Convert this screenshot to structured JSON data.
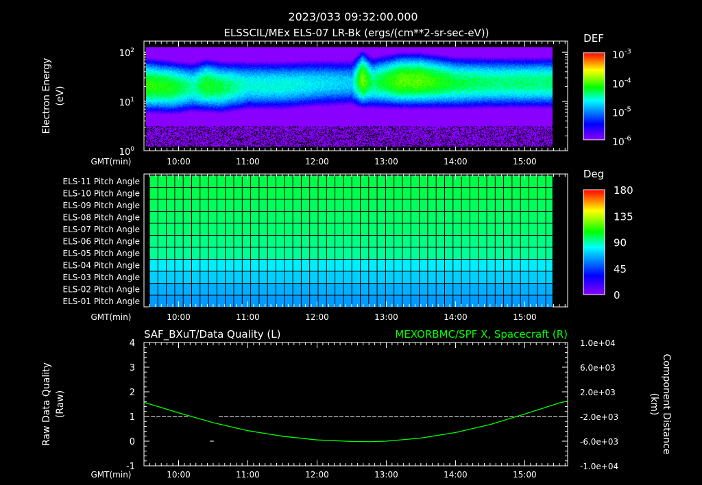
{
  "header": {
    "timestamp": "2023/033 09:32:00.000",
    "title": "ELSSCIL/MEx ELS-07 LR-Bk  (ergs/(cm**2-sr-sec-eV))"
  },
  "chart_data": [
    {
      "type": "heatmap",
      "name": "electron-spectrogram",
      "ylabel": "Electron Energy",
      "ylabel2": "(eV)",
      "yscale": "log",
      "ylim": [
        1,
        150
      ],
      "yticks": [
        {
          "v": 1,
          "base": "10",
          "exp": "0"
        },
        {
          "v": 10,
          "base": "10",
          "exp": "1"
        },
        {
          "v": 100,
          "base": "10",
          "exp": "2"
        }
      ],
      "xlabel": "GMT(min)",
      "xlim_hours": [
        9.5,
        15.62
      ],
      "data_end_hours": 15.4,
      "xticks": [
        "10:00",
        "11:00",
        "12:00",
        "13:00",
        "14:00",
        "15:00"
      ],
      "colorbar": {
        "label": "DEF",
        "scale": "log",
        "range": [
          1e-06,
          0.001
        ],
        "ticks": [
          {
            "base": "10",
            "exp": "-3"
          },
          {
            "base": "10",
            "exp": "-4"
          },
          {
            "base": "10",
            "exp": "-5"
          },
          {
            "base": "10",
            "exp": "-6"
          }
        ]
      },
      "band_profile": {
        "hours": [
          9.5,
          9.9,
          10.2,
          10.4,
          10.6,
          11.0,
          11.5,
          12.0,
          12.5,
          12.65,
          12.8,
          13.2,
          13.5,
          14.0,
          14.5,
          15.0,
          15.4
        ],
        "peak_log10": [
          -4.1,
          -4.2,
          -4.5,
          -4.2,
          -4.3,
          -4.6,
          -4.6,
          -4.7,
          -4.8,
          -3.9,
          -4.4,
          -4.0,
          -4.0,
          -4.3,
          -4.4,
          -4.4,
          -4.4
        ],
        "peak_energy_eV": [
          22,
          20,
          20,
          22,
          20,
          22,
          22,
          24,
          25,
          30,
          25,
          28,
          28,
          25,
          25,
          25,
          25
        ]
      }
    },
    {
      "type": "heatmap",
      "name": "pitch-angle",
      "rows": [
        "ELS-11 Pitch Angle",
        "ELS-10 Pitch Angle",
        "ELS-09 Pitch Angle",
        "ELS-08 Pitch Angle",
        "ELS-07 Pitch Angle",
        "ELS-06 Pitch Angle",
        "ELS-05 Pitch Angle",
        "ELS-04 Pitch Angle",
        "ELS-03 Pitch Angle",
        "ELS-02 Pitch Angle",
        "ELS-01 Pitch Angle"
      ],
      "values_deg": [
        100,
        100,
        98,
        97,
        96,
        94,
        92,
        78,
        72,
        66,
        62
      ],
      "xlabel": "GMT(min)",
      "xticks": [
        "10:00",
        "11:00",
        "12:00",
        "13:00",
        "14:00",
        "15:00"
      ],
      "colorbar": {
        "label": "Deg",
        "range": [
          0,
          180
        ],
        "ticks": [
          "180",
          "135",
          "90",
          "45",
          "0"
        ]
      }
    },
    {
      "type": "line",
      "name": "data-quality-and-position",
      "title_left": "SAF_BXuT/Data Quality (L)",
      "title_right": "MEXORBMC/SPF X, Spacecraft (R)",
      "ylabel_left": "Raw Data Quality",
      "ylabel_left2": "(Raw)",
      "ylabel_right": "Component Distance",
      "ylabel_right2": "(km)",
      "xlabel": "GMT(min)",
      "xticks": [
        "10:00",
        "11:00",
        "12:00",
        "13:00",
        "14:00",
        "15:00"
      ],
      "ylim_left": [
        -1,
        4
      ],
      "yticks_left": [
        "4",
        "3",
        "2",
        "1",
        "0",
        "-1"
      ],
      "ylim_right": [
        -10000,
        10000
      ],
      "yticks_right": [
        "1.0e+04",
        "6.0e+03",
        "2.0e+03",
        "-2.0e+03",
        "-6.0e+03",
        "-1.0e+04"
      ],
      "series": [
        {
          "name": "Data Quality",
          "color": "#ffffff",
          "segments": [
            {
              "hours": [
                9.6,
                10.15
              ],
              "value": 1
            },
            {
              "hours": [
                10.58,
                15.58
              ],
              "value": 1
            },
            {
              "hours": [
                10.45,
                10.52
              ],
              "value": 0
            }
          ]
        },
        {
          "name": "SPF X",
          "color": "#00ff00",
          "hours": [
            9.5,
            10.0,
            10.5,
            11.0,
            11.5,
            12.0,
            12.5,
            12.75,
            13.0,
            13.5,
            14.0,
            14.5,
            15.0,
            15.5,
            15.62
          ],
          "km": [
            300,
            -1400,
            -3000,
            -4300,
            -5200,
            -5800,
            -6050,
            -6080,
            -6000,
            -5500,
            -4600,
            -3300,
            -1600,
            200,
            500
          ]
        }
      ]
    }
  ]
}
